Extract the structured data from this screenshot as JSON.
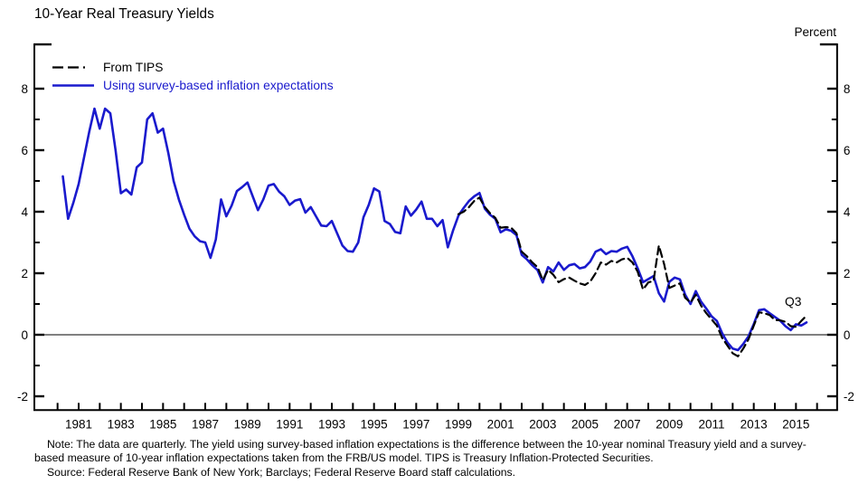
{
  "title": "10-Year Real Treasury Yields",
  "unit_label": "Percent",
  "q3_label": "Q3",
  "colors": {
    "survey_line": "#1a1acd",
    "tips_line": "#000000",
    "axis": "#000000"
  },
  "legend": [
    {
      "label": "From TIPS",
      "style": "dashed",
      "color": "#000000"
    },
    {
      "label": "Using survey-based inflation expectations",
      "style": "solid",
      "color": "#1a1acd"
    }
  ],
  "notes": {
    "note_line1": "Note:  The data are quarterly. The yield using survey-based inflation expectations is the difference between the 10-year nominal Treasury yield and a survey-",
    "note_line2": "based measure of 10-year inflation expectations taken from the FRB/US model. TIPS is Treasury Inflation-Protected Securities.",
    "source_line": "Source:  Federal Reserve Bank of New York; Barclays; Federal Reserve Board staff calculations."
  },
  "chart_data": {
    "type": "line",
    "title": "10-Year Real Treasury Yields",
    "ylabel": "Percent",
    "frequency": "quarterly",
    "grid": false,
    "legend_position": "top-left",
    "zero_line": true,
    "xlim": [
      1978.9,
      2016.95
    ],
    "ylim": [
      -2.45,
      9.47
    ],
    "x_tick_years": [
      1981,
      1983,
      1985,
      1987,
      1989,
      1991,
      1993,
      1995,
      1997,
      1999,
      2001,
      2003,
      2005,
      2007,
      2009,
      2011,
      2013,
      2015
    ],
    "x_minor_tick_years_range": [
      1980,
      2016
    ],
    "y_ticks": [
      8,
      6,
      4,
      2,
      0,
      -2
    ],
    "y_minor_ticks": [
      7,
      5,
      3,
      1,
      -1
    ],
    "last_point_label": "Q3",
    "series": [
      {
        "name": "Using survey-based inflation expectations",
        "color": "#1a1acd",
        "dash": false,
        "start": "1980Q2",
        "start_t": 1980.25,
        "end": "2015Q3",
        "values": [
          5.15,
          3.77,
          4.3,
          4.9,
          5.74,
          6.6,
          7.35,
          6.7,
          7.35,
          7.2,
          6.0,
          4.6,
          4.72,
          4.56,
          5.44,
          5.6,
          7.0,
          7.2,
          6.57,
          6.7,
          5.9,
          5.0,
          4.4,
          3.9,
          3.45,
          3.2,
          3.04,
          3.0,
          2.5,
          3.1,
          4.4,
          3.85,
          4.2,
          4.67,
          4.8,
          4.95,
          4.5,
          4.05,
          4.4,
          4.85,
          4.9,
          4.65,
          4.5,
          4.22,
          4.36,
          4.41,
          3.97,
          4.15,
          3.85,
          3.55,
          3.53,
          3.7,
          3.3,
          2.9,
          2.72,
          2.7,
          3.0,
          3.82,
          4.22,
          4.76,
          4.66,
          3.7,
          3.6,
          3.34,
          3.3,
          4.17,
          3.87,
          4.07,
          4.33,
          3.77,
          3.77,
          3.53,
          3.73,
          2.84,
          3.4,
          3.87,
          4.12,
          4.35,
          4.5,
          4.61,
          4.1,
          3.9,
          3.77,
          3.33,
          3.43,
          3.38,
          3.24,
          2.6,
          2.45,
          2.26,
          2.1,
          1.7,
          2.2,
          2.06,
          2.35,
          2.11,
          2.26,
          2.3,
          2.16,
          2.2,
          2.38,
          2.7,
          2.78,
          2.62,
          2.72,
          2.7,
          2.8,
          2.86,
          2.55,
          2.16,
          1.71,
          1.81,
          1.91,
          1.35,
          1.08,
          1.72,
          1.86,
          1.8,
          1.3,
          1.0,
          1.42,
          1.08,
          0.85,
          0.6,
          0.45,
          0.05,
          -0.25,
          -0.45,
          -0.5,
          -0.3,
          -0.05,
          0.35,
          0.8,
          0.83,
          0.7,
          0.58,
          0.46,
          0.28,
          0.15,
          0.34,
          0.3,
          0.4
        ]
      },
      {
        "name": "From TIPS",
        "color": "#000000",
        "dash": true,
        "start": "1999Q1",
        "start_t": 1999.0,
        "end": "2015Q3",
        "values": [
          3.92,
          4.0,
          4.15,
          4.35,
          4.46,
          4.15,
          3.95,
          3.8,
          3.48,
          3.5,
          3.48,
          3.3,
          2.7,
          2.55,
          2.35,
          2.2,
          1.78,
          2.11,
          1.95,
          1.71,
          1.81,
          1.86,
          1.76,
          1.67,
          1.62,
          1.73,
          2.0,
          2.35,
          2.28,
          2.4,
          2.35,
          2.45,
          2.5,
          2.35,
          2.05,
          1.47,
          1.7,
          1.75,
          2.9,
          2.3,
          1.52,
          1.6,
          1.67,
          1.2,
          1.05,
          1.3,
          0.95,
          0.7,
          0.5,
          0.3,
          -0.1,
          -0.35,
          -0.6,
          -0.7,
          -0.45,
          -0.15,
          0.3,
          0.73,
          0.7,
          0.64,
          0.48,
          0.47,
          0.42,
          0.28,
          0.26,
          0.45,
          0.62
        ]
      }
    ]
  }
}
